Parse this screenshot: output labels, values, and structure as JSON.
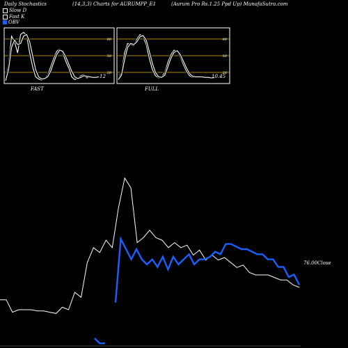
{
  "header": {
    "left": "Daily Stochastics",
    "middle": "(14,3,3) Charts for AURUMPP_E1",
    "right": "(Aurum Pro  Rs.1.25 Ppd Up) MunafaSutra.com"
  },
  "legend": [
    {
      "label": "Slow  D",
      "color": "#ffffff"
    },
    {
      "label": "Fast K",
      "color": "#ffffff"
    },
    {
      "label": "OBV",
      "color": "#1a5fff"
    }
  ],
  "colors": {
    "background": "#000000",
    "grid": "#b58a00",
    "price": "#ffffff",
    "obv": "#1a5fff"
  },
  "panels": [
    {
      "caption": "FAST",
      "last_value": "12"
    },
    {
      "caption": "FULL",
      "last_value": "10.45"
    }
  ],
  "price_label": "76.00Close",
  "chart_data": [
    {
      "type": "line",
      "title": "FAST",
      "ylim": [
        0,
        100
      ],
      "yticks": [
        20,
        50,
        80
      ],
      "series": [
        {
          "name": "Fast K",
          "values": [
            6,
            35,
            85,
            75,
            55,
            88,
            92,
            86,
            55,
            30,
            12,
            8,
            6,
            10,
            15,
            30,
            45,
            58,
            62,
            55,
            40,
            28,
            12,
            7,
            9,
            14,
            16,
            10,
            12,
            11,
            10,
            12
          ]
        },
        {
          "name": "Slow  D",
          "values": [
            5,
            25,
            65,
            78,
            70,
            72,
            85,
            88,
            75,
            50,
            25,
            12,
            8,
            9,
            12,
            22,
            38,
            52,
            60,
            58,
            48,
            35,
            22,
            12,
            9,
            11,
            14,
            13,
            12,
            11,
            11,
            12
          ]
        }
      ]
    },
    {
      "type": "line",
      "title": "FULL",
      "ylim": [
        0,
        100
      ],
      "yticks": [
        20,
        50,
        80
      ],
      "series": [
        {
          "name": "Fast K",
          "values": [
            8,
            20,
            55,
            72,
            70,
            68,
            80,
            88,
            84,
            70,
            45,
            25,
            14,
            10,
            12,
            20,
            38,
            52,
            60,
            58,
            48,
            34,
            22,
            14,
            11,
            12,
            13,
            12,
            11,
            10,
            10,
            10.45
          ]
        },
        {
          "name": "Slow  D",
          "values": [
            7,
            15,
            42,
            65,
            72,
            70,
            75,
            84,
            86,
            78,
            58,
            36,
            20,
            12,
            11,
            15,
            30,
            46,
            56,
            59,
            52,
            40,
            28,
            18,
            13,
            12,
            12,
            12,
            11,
            11,
            10,
            10.5
          ]
        }
      ]
    },
    {
      "type": "line",
      "title": "",
      "series": [
        {
          "name": "Price",
          "values": [
            71,
            71,
            66,
            67,
            67,
            67,
            66.5,
            66.5,
            66,
            65.5,
            68,
            67,
            74,
            72,
            86,
            92,
            90,
            95,
            92,
            108,
            120,
            116,
            94,
            96,
            99,
            96,
            95,
            92,
            94,
            92,
            93,
            89,
            91,
            87,
            89,
            87,
            88,
            86,
            84,
            85,
            82,
            81,
            81,
            81,
            80,
            79,
            79,
            77,
            76
          ]
        },
        {
          "name": "OBV",
          "values": [
            null,
            null,
            null,
            null,
            null,
            null,
            null,
            null,
            null,
            null,
            null,
            null,
            null,
            null,
            null,
            null,
            null,
            null,
            1,
            -1,
            -1,
            null,
            15,
            40,
            36,
            32,
            36,
            32,
            30,
            32,
            29,
            33,
            28,
            33,
            30,
            32,
            34,
            30,
            32,
            32,
            33,
            35,
            34,
            38,
            38,
            37,
            36,
            36,
            35,
            34,
            34,
            32,
            32,
            29,
            29,
            25,
            26,
            22
          ]
        }
      ]
    }
  ]
}
